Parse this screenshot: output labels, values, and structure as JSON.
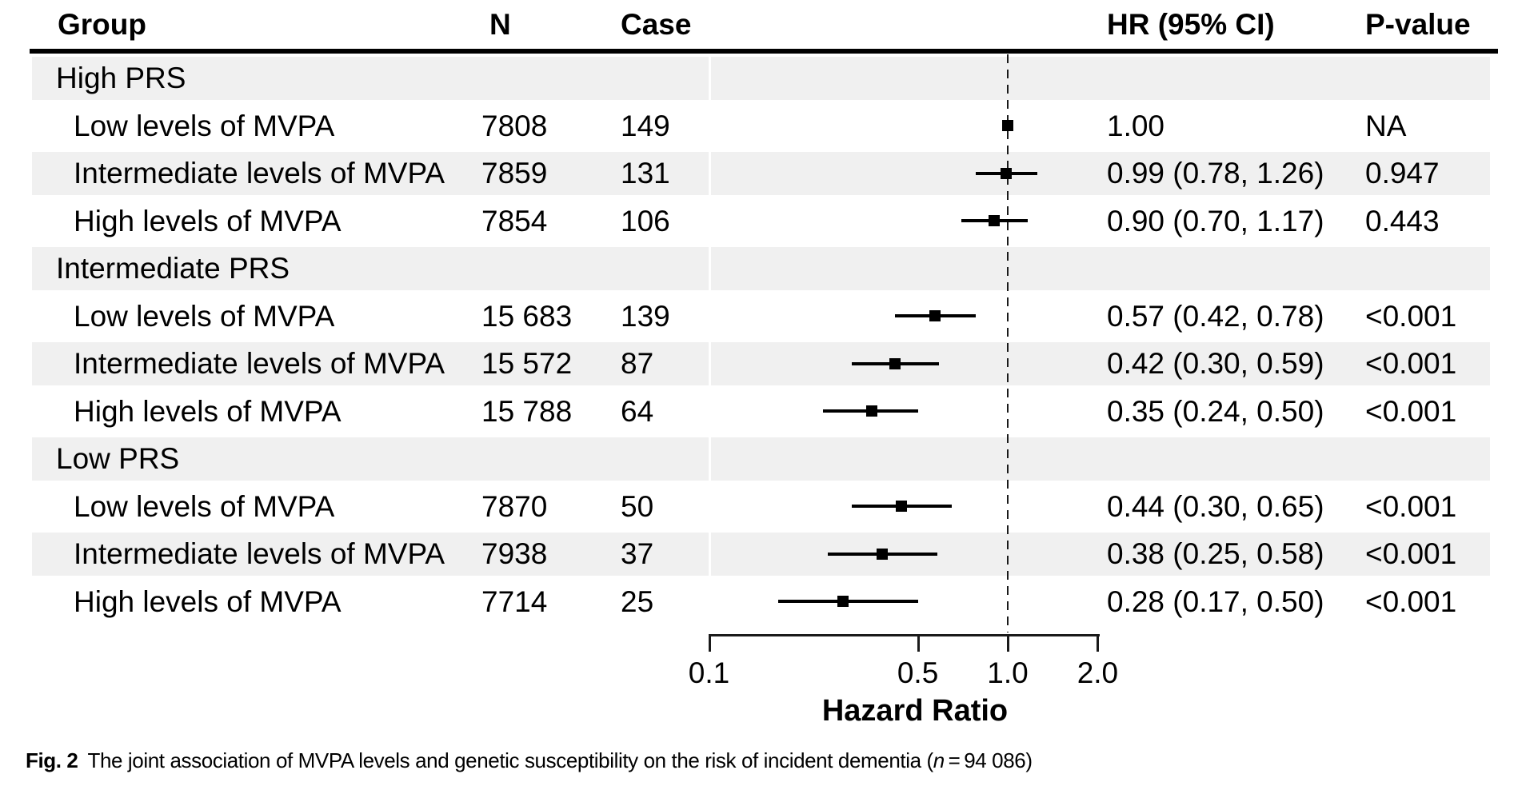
{
  "figure": {
    "caption": {
      "label": "Fig. 2",
      "body": "The joint association of MVPA levels and genetic susceptibility on the risk of incident dementia (",
      "n_symbol": "n",
      "tail": " = 94 086)"
    }
  },
  "chart_data": {
    "type": "forest",
    "title": "",
    "xlabel": "Hazard Ratio",
    "x_scale": "log10",
    "xlim": [
      0.1,
      2.0
    ],
    "x_ticks": [
      {
        "value": 0.1,
        "label": "0.1"
      },
      {
        "value": 0.5,
        "label": "0.5"
      },
      {
        "value": 1.0,
        "label": "1.0"
      },
      {
        "value": 2.0,
        "label": "2.0"
      }
    ],
    "reference_line": 1.0,
    "grid": false,
    "legend": false,
    "columns": [
      "Group",
      "N",
      "Case",
      "HR (95% CI)",
      "P-value"
    ],
    "rows": [
      {
        "type": "group",
        "label": "High PRS",
        "shaded": true
      },
      {
        "type": "item",
        "label": "Low levels of MVPA",
        "n": "7808",
        "cases": "149",
        "hr": 1.0,
        "ci_low": null,
        "ci_high": null,
        "hr_ci_text": "1.00",
        "p": "NA",
        "shaded": false
      },
      {
        "type": "item",
        "label": "Intermediate levels of MVPA",
        "n": "7859",
        "cases": "131",
        "hr": 0.99,
        "ci_low": 0.78,
        "ci_high": 1.26,
        "hr_ci_text": "0.99 (0.78, 1.26)",
        "p": "0.947",
        "shaded": true
      },
      {
        "type": "item",
        "label": "High levels of MVPA",
        "n": "7854",
        "cases": "106",
        "hr": 0.9,
        "ci_low": 0.7,
        "ci_high": 1.17,
        "hr_ci_text": "0.90 (0.70, 1.17)",
        "p": "0.443",
        "shaded": false
      },
      {
        "type": "group",
        "label": "Intermediate PRS",
        "shaded": true
      },
      {
        "type": "item",
        "label": "Low levels of MVPA",
        "n": "15 683",
        "cases": "139",
        "hr": 0.57,
        "ci_low": 0.42,
        "ci_high": 0.78,
        "hr_ci_text": "0.57 (0.42, 0.78)",
        "p": "<0.001",
        "shaded": false
      },
      {
        "type": "item",
        "label": "Intermediate levels of MVPA",
        "n": "15 572",
        "cases": "87",
        "hr": 0.42,
        "ci_low": 0.3,
        "ci_high": 0.59,
        "hr_ci_text": "0.42 (0.30, 0.59)",
        "p": "<0.001",
        "shaded": true
      },
      {
        "type": "item",
        "label": "High levels of MVPA",
        "n": "15 788",
        "cases": "64",
        "hr": 0.35,
        "ci_low": 0.24,
        "ci_high": 0.5,
        "hr_ci_text": "0.35 (0.24, 0.50)",
        "p": "<0.001",
        "shaded": false
      },
      {
        "type": "group",
        "label": "Low PRS",
        "shaded": true
      },
      {
        "type": "item",
        "label": "Low levels of MVPA",
        "n": "7870",
        "cases": "50",
        "hr": 0.44,
        "ci_low": 0.3,
        "ci_high": 0.65,
        "hr_ci_text": "0.44 (0.30, 0.65)",
        "p": "<0.001",
        "shaded": false
      },
      {
        "type": "item",
        "label": "Intermediate levels of MVPA",
        "n": "7938",
        "cases": "37",
        "hr": 0.38,
        "ci_low": 0.25,
        "ci_high": 0.58,
        "hr_ci_text": "0.38 (0.25, 0.58)",
        "p": "<0.001",
        "shaded": true
      },
      {
        "type": "item",
        "label": "High levels of MVPA",
        "n": "7714",
        "cases": "25",
        "hr": 0.28,
        "ci_low": 0.17,
        "ci_high": 0.5,
        "hr_ci_text": "0.28 (0.17, 0.50)",
        "p": "<0.001",
        "shaded": false
      }
    ]
  }
}
